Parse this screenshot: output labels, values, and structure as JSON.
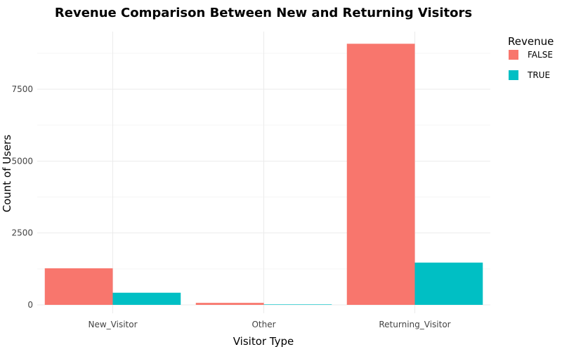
{
  "chart_data": {
    "type": "bar",
    "title": "Revenue Comparison Between New and Returning Visitors",
    "xlabel": "Visitor Type",
    "ylabel": "Count of Users",
    "categories": [
      "New_Visitor",
      "Other",
      "Returning_Visitor"
    ],
    "series": [
      {
        "name": "FALSE",
        "color": "#F8766D",
        "values": [
          1272,
          69,
          9081
        ]
      },
      {
        "name": "TRUE",
        "color": "#00BFC4",
        "values": [
          422,
          16,
          1470
        ]
      }
    ],
    "ylim": [
      0,
      9500
    ],
    "yticks": [
      0,
      2500,
      5000,
      7500
    ],
    "ytick_labels": [
      "0",
      "2500",
      "5000",
      "7500"
    ],
    "legend": {
      "title": "Revenue",
      "position": "right"
    },
    "grid": true
  }
}
